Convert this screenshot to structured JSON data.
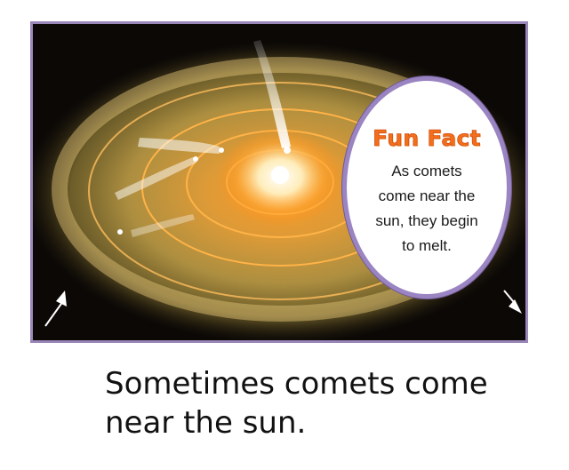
{
  "illustration": {
    "subject": "sun-and-comets-icon"
  },
  "fun_fact": {
    "title": "Fun Fact",
    "lines": [
      "As comets",
      "come near the",
      "sun, they begin",
      "to melt."
    ]
  },
  "caption": {
    "lines": [
      "Sometimes comets come",
      "near the sun."
    ]
  },
  "colors": {
    "frame_border": "#9a86b8",
    "bubble_border": "#9a84c2",
    "title": "#f36d1a",
    "sun_core": "#ffffff",
    "sun_glow": "#ff9a1f"
  }
}
